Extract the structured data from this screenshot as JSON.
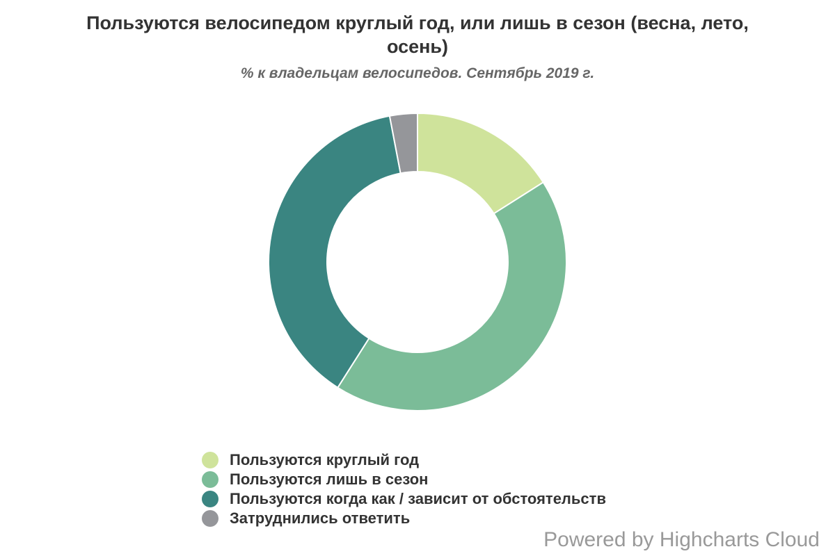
{
  "chart_data": {
    "type": "pie",
    "variant": "donut",
    "title": "Пользуются велосипедом круглый год, или лишь в сезон (весна, лето, осень)",
    "subtitle": "% к владельцам велосипедов. Сентябрь 2019 г.",
    "legend_position": "bottom",
    "series": [
      {
        "data": [
          {
            "name": "Пользуются круглый год",
            "value": 16,
            "color": "#cfe39b"
          },
          {
            "name": "Пользуются лишь в сезон",
            "value": 43,
            "color": "#7bbc98"
          },
          {
            "name": "Пользуются когда как / зависит от обстоятельств",
            "value": 38,
            "color": "#3a8581"
          },
          {
            "name": "Затруднились ответить",
            "value": 3,
            "color": "#95969a"
          }
        ]
      }
    ]
  },
  "credits": "Powered by Highcharts Cloud"
}
